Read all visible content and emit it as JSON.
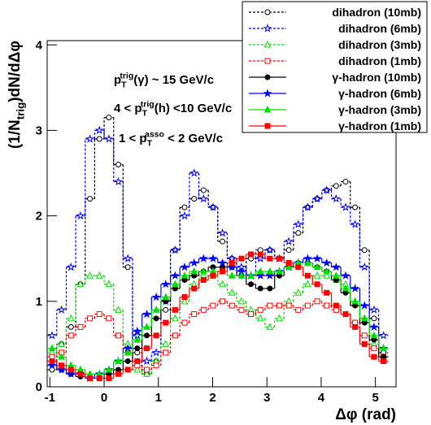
{
  "chart_data": {
    "type": "step-histogram",
    "x_label": [
      {
        "t": "Δφ"
      },
      {
        "t": " (rad)"
      }
    ],
    "y_label": [
      {
        "t": "(1/N"
      },
      {
        "t": "trig",
        "sub": true
      },
      {
        "t": ")dN/dΔφ"
      }
    ],
    "annotations": [
      [
        {
          "t": "p"
        },
        {
          "t": "T",
          "sub": true
        },
        {
          "t": "trig",
          "sup": true
        },
        {
          "t": "(γ) ~ 15 GeV/c"
        }
      ],
      [
        {
          "t": "4 < p"
        },
        {
          "t": "T",
          "sub": true
        },
        {
          "t": "trig",
          "sup": true
        },
        {
          "t": "(h) <10 GeV/c"
        }
      ],
      [
        {
          "t": "1 < p"
        },
        {
          "t": "T",
          "sub": true
        },
        {
          "t": "asso",
          "sup": true
        },
        {
          "t": " < 2 GeV/c"
        }
      ]
    ],
    "bins": [
      -1.047,
      -0.873,
      -0.698,
      -0.524,
      -0.349,
      -0.175,
      0,
      0.175,
      0.349,
      0.524,
      0.698,
      0.873,
      1.047,
      1.222,
      1.396,
      1.571,
      1.745,
      1.92,
      2.094,
      2.269,
      2.443,
      2.618,
      2.793,
      2.967,
      3.142,
      3.316,
      3.491,
      3.665,
      3.84,
      4.014,
      4.189,
      4.363,
      4.538,
      4.712,
      4.887,
      5.061,
      5.236
    ],
    "xlim": [
      -1.05,
      5.38
    ],
    "ylim": [
      0,
      4.05
    ],
    "xticks": [
      -1,
      0,
      1,
      2,
      3,
      4,
      5
    ],
    "yticks": [
      0,
      1,
      2,
      3,
      4
    ],
    "series": [
      {
        "name": "dihadron (10mb)",
        "color": "#000000",
        "dash": true,
        "marker": "open-circle",
        "values": [
          0.2,
          0.5,
          0.7,
          1.2,
          2.2,
          2.9,
          3.15,
          2.6,
          1.4,
          0.4,
          0.15,
          0.3,
          0.9,
          1.6,
          2.1,
          2.2,
          2.3,
          2.1,
          1.7,
          1.5,
          1.3,
          1.5,
          1.6,
          1.6,
          1.5,
          1.6,
          1.8,
          2.1,
          2.2,
          2.3,
          2.35,
          2.4,
          2.1,
          1.6,
          0.8,
          0.4
        ]
      },
      {
        "name": "dihadron (6mb)",
        "color": "#0000ff",
        "dash": true,
        "marker": "open-star",
        "values": [
          0.6,
          0.9,
          1.4,
          2.0,
          2.9,
          3.0,
          2.9,
          2.4,
          1.5,
          0.6,
          0.3,
          0.4,
          1.0,
          1.6,
          2.0,
          2.5,
          2.2,
          2.1,
          1.8,
          1.5,
          1.4,
          1.3,
          1.5,
          1.6,
          1.5,
          1.7,
          1.9,
          2.1,
          2.2,
          2.3,
          2.2,
          2.1,
          1.9,
          1.4,
          0.9,
          0.6
        ]
      },
      {
        "name": "dihadron (3mb)",
        "color": "#00dd00",
        "dash": true,
        "marker": "open-triangle",
        "values": [
          0.4,
          0.5,
          0.8,
          1.2,
          1.3,
          1.3,
          1.2,
          0.9,
          0.5,
          0.2,
          0.15,
          0.3,
          0.5,
          0.8,
          1.0,
          1.2,
          1.3,
          1.3,
          1.2,
          1.1,
          1.0,
          0.9,
          0.8,
          0.7,
          0.8,
          1.0,
          1.1,
          1.2,
          1.3,
          1.3,
          1.25,
          1.2,
          1.0,
          0.8,
          0.5,
          0.35
        ]
      },
      {
        "name": "dihadron (1mb)",
        "color": "#ff0000",
        "dash": true,
        "marker": "open-square",
        "values": [
          0.35,
          0.4,
          0.6,
          0.7,
          0.8,
          0.85,
          0.8,
          0.6,
          0.4,
          0.25,
          0.2,
          0.25,
          0.4,
          0.6,
          0.75,
          0.85,
          0.9,
          0.95,
          1.0,
          0.95,
          0.9,
          0.85,
          0.9,
          0.95,
          0.95,
          0.95,
          0.9,
          0.95,
          1.0,
          0.95,
          0.9,
          0.85,
          0.75,
          0.6,
          0.45,
          0.35
        ]
      },
      {
        "name": "γ-hadron (10mb)",
        "color": "#000000",
        "dash": false,
        "marker": "circle",
        "values": [
          0.3,
          0.2,
          0.15,
          0.12,
          0.1,
          0.1,
          0.15,
          0.2,
          0.3,
          0.45,
          0.6,
          0.8,
          1.0,
          1.15,
          1.25,
          1.3,
          1.35,
          1.4,
          1.4,
          1.4,
          1.3,
          1.2,
          1.15,
          1.15,
          1.3,
          1.4,
          1.45,
          1.45,
          1.4,
          1.35,
          1.25,
          1.1,
          0.95,
          0.75,
          0.55,
          0.35
        ]
      },
      {
        "name": "γ-hadron (6mb)",
        "color": "#0000ff",
        "dash": false,
        "marker": "star",
        "values": [
          0.25,
          0.2,
          0.15,
          0.15,
          0.1,
          0.15,
          0.2,
          0.3,
          0.45,
          0.65,
          0.85,
          1.05,
          1.2,
          1.3,
          1.4,
          1.45,
          1.5,
          1.5,
          1.45,
          1.4,
          1.35,
          1.3,
          1.3,
          1.3,
          1.35,
          1.4,
          1.45,
          1.5,
          1.5,
          1.45,
          1.4,
          1.3,
          1.15,
          0.95,
          0.7,
          0.45
        ]
      },
      {
        "name": "γ-hadron (3mb)",
        "color": "#00dd00",
        "dash": false,
        "marker": "triangle",
        "values": [
          0.45,
          0.35,
          0.25,
          0.2,
          0.15,
          0.15,
          0.2,
          0.3,
          0.4,
          0.55,
          0.7,
          0.9,
          1.05,
          1.2,
          1.3,
          1.35,
          1.35,
          1.35,
          1.35,
          1.3,
          1.3,
          1.3,
          1.35,
          1.35,
          1.35,
          1.4,
          1.45,
          1.45,
          1.4,
          1.35,
          1.3,
          1.15,
          1.0,
          0.8,
          0.6,
          0.45
        ]
      },
      {
        "name": "γ-hadron (1mb)",
        "color": "#ff0000",
        "dash": false,
        "marker": "square",
        "values": [
          0.3,
          0.25,
          0.2,
          0.15,
          0.1,
          0.1,
          0.1,
          0.15,
          0.2,
          0.3,
          0.45,
          0.6,
          0.75,
          0.9,
          1.05,
          1.15,
          1.25,
          1.3,
          1.35,
          1.45,
          1.5,
          1.55,
          1.55,
          1.5,
          1.5,
          1.45,
          1.4,
          1.3,
          1.2,
          1.1,
          0.95,
          0.85,
          0.7,
          0.5,
          0.35,
          0.3
        ]
      }
    ]
  }
}
